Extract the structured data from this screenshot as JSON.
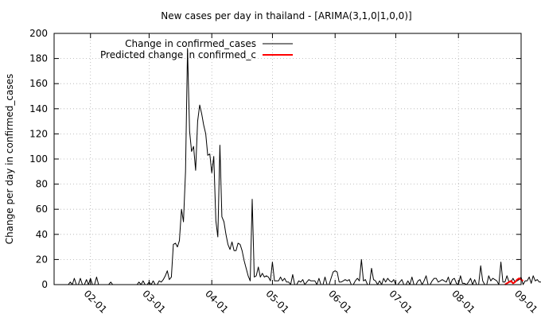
{
  "chart_data": {
    "type": "line",
    "title": "New cases per day in thailand -  [ARIMA(3,1,0|1,0,0)]",
    "xlabel": "",
    "ylabel": "Change per day in confirmed_cases",
    "ylim": [
      0,
      200
    ],
    "yticks": [
      0,
      20,
      40,
      60,
      80,
      100,
      120,
      140,
      160,
      180,
      200
    ],
    "xlim": [
      "2020-01-14",
      "2020-09-01"
    ],
    "xticks": [
      "02-01",
      "03-01",
      "04-01",
      "05-01",
      "06-01",
      "07-01",
      "08-01",
      "09-01"
    ],
    "xtick_dates": [
      "2020-02-01",
      "2020-03-01",
      "2020-04-01",
      "2020-05-01",
      "2020-06-01",
      "2020-07-01",
      "2020-08-01",
      "2020-09-01"
    ],
    "grid": true,
    "legend_position": "top-left",
    "series": [
      {
        "name": "Change in confirmed_cases",
        "color": "#000000",
        "start_date": "2020-01-17",
        "values": [
          0,
          0,
          0,
          0,
          0,
          2,
          0,
          5,
          0,
          0,
          5,
          0,
          0,
          4,
          0,
          5,
          0,
          0,
          6,
          0,
          0,
          0,
          0,
          0,
          0,
          2,
          0,
          0,
          0,
          0,
          0,
          0,
          0,
          0,
          0,
          0,
          0,
          0,
          0,
          2,
          0,
          3,
          0,
          0,
          2,
          0,
          3,
          0,
          0,
          3,
          2,
          4,
          7,
          11,
          4,
          6,
          32,
          33,
          30,
          35,
          60,
          50,
          90,
          188,
          122,
          106,
          110,
          91,
          130,
          143,
          136,
          127,
          120,
          103,
          104,
          89,
          102,
          51,
          38,
          111,
          54,
          50,
          40,
          32,
          28,
          34,
          27,
          27,
          33,
          32,
          27,
          19,
          13,
          7,
          3,
          68,
          6,
          7,
          14,
          6,
          9,
          6,
          7,
          6,
          3,
          18,
          3,
          3,
          3,
          6,
          3,
          5,
          2,
          2,
          0,
          8,
          0,
          0,
          3,
          2,
          4,
          0,
          2,
          4,
          3,
          3,
          3,
          0,
          5,
          0,
          0,
          6,
          0,
          0,
          5,
          10,
          11,
          10,
          2,
          2,
          3,
          4,
          3,
          4,
          0,
          0,
          3,
          5,
          3,
          20,
          3,
          4,
          0,
          0,
          13,
          4,
          3,
          0,
          3,
          0,
          5,
          2,
          5,
          3,
          2,
          4,
          0,
          0,
          2,
          4,
          0,
          0,
          3,
          0,
          6,
          0,
          0,
          3,
          4,
          0,
          3,
          7,
          0,
          0,
          3,
          5,
          5,
          2,
          3,
          4,
          3,
          2,
          6,
          0,
          4,
          5,
          1,
          0,
          7,
          1,
          1,
          0,
          2,
          5,
          0,
          4,
          0,
          0,
          15,
          3,
          0,
          0,
          7,
          3,
          5,
          4,
          3,
          0,
          18,
          2,
          2,
          7,
          2,
          2,
          5,
          2,
          3,
          4,
          6,
          0,
          3,
          3,
          6,
          1,
          7,
          3,
          4,
          2,
          2,
          16,
          0,
          3,
          3,
          6,
          2,
          4,
          1,
          6,
          2,
          3,
          0,
          4,
          2,
          3,
          1,
          3,
          0,
          5,
          3
        ]
      },
      {
        "name": "Predicted change in confirmed_c",
        "color": "#ff0000",
        "start_date": "2020-08-24",
        "values": [
          0,
          1,
          2,
          3,
          1,
          2,
          4,
          5,
          4,
          3
        ]
      }
    ]
  }
}
